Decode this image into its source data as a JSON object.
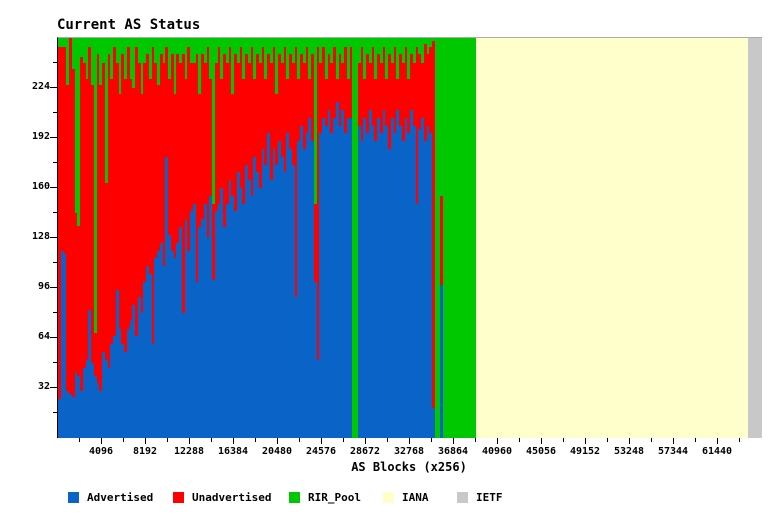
{
  "title": "Current AS Status",
  "chart_data": {
    "type": "bar",
    "subtype": "stacked",
    "title": "Current AS Status",
    "xlabel": "AS Blocks (x256)",
    "ylabel": "",
    "ylim": [
      0,
      256
    ],
    "xlim_as_numbers": [
      0,
      65536
    ],
    "x_block_size_asns": 256,
    "yticks_major": [
      32,
      64,
      96,
      128,
      160,
      192,
      224
    ],
    "ytick_minor_step": 16,
    "xticks_major_as": [
      4096,
      8192,
      12288,
      16384,
      20480,
      24576,
      28672,
      32768,
      36864,
      40960,
      45056,
      49152,
      53248,
      57344,
      61440
    ],
    "xtick_minor_step_as": 2048,
    "grid": "off",
    "legend_position": "bottom",
    "stack_total": 256,
    "stack_order_bottom_to_top": [
      "Advertised",
      "Unadvertised",
      "RIR_Pool"
    ],
    "rir_pool_rule": "RIR_Pool = 256 - Advertised - Unadvertised (per block)",
    "series": [
      {
        "name": "Advertised",
        "color": "#0A64C8",
        "values": [
          25,
          120,
          118,
          30,
          28,
          26,
          42,
          40,
          30,
          45,
          50,
          82,
          48,
          40,
          35,
          30,
          55,
          50,
          45,
          60,
          65,
          95,
          70,
          60,
          55,
          70,
          75,
          85,
          65,
          90,
          80,
          100,
          110,
          105,
          60,
          115,
          120,
          125,
          110,
          180,
          130,
          120,
          115,
          125,
          135,
          80,
          140,
          120,
          145,
          150,
          100,
          135,
          140,
          150,
          128,
          155,
          101,
          145,
          150,
          160,
          135,
          150,
          165,
          155,
          145,
          170,
          160,
          150,
          175,
          165,
          155,
          180,
          170,
          160,
          185,
          175,
          195,
          165,
          185,
          175,
          190,
          180,
          170,
          195,
          185,
          175,
          90,
          190,
          200,
          185,
          195,
          205,
          190,
          100,
          50,
          195,
          205,
          200,
          210,
          195,
          205,
          215,
          200,
          210,
          195,
          205,
          205,
          0,
          0,
          200,
          190,
          205,
          195,
          210,
          200,
          190,
          205,
          195,
          210,
          200,
          185,
          205,
          195,
          210,
          200,
          190,
          205,
          195,
          210,
          200,
          150,
          198,
          205,
          190,
          200,
          195,
          19,
          0,
          0,
          98,
          0,
          0,
          0,
          0,
          0,
          0,
          0,
          0,
          0,
          0,
          0,
          0
        ]
      },
      {
        "name": "Unadvertised",
        "color": "#FF0000",
        "values": [
          225,
          130,
          132,
          196,
          228,
          210,
          102,
          96,
          214,
          195,
          180,
          168,
          178,
          27,
          211,
          196,
          185,
          113,
          201,
          170,
          185,
          145,
          150,
          186,
          175,
          180,
          155,
          139,
          185,
          150,
          140,
          140,
          136,
          125,
          190,
          125,
          106,
          121,
          130,
          70,
          100,
          126,
          105,
          121,
          105,
          166,
          90,
          130,
          95,
          90,
          146,
          85,
          106,
          90,
          122,
          75,
          49,
          95,
          100,
          70,
          111,
          90,
          85,
          65,
          101,
          70,
          90,
          80,
          71,
          75,
          95,
          50,
          76,
          80,
          65,
          55,
          51,
          75,
          65,
          45,
          56,
          60,
          80,
          35,
          61,
          65,
          160,
          40,
          46,
          55,
          55,
          25,
          56,
          50,
          200,
          45,
          45,
          30,
          36,
          45,
          45,
          15,
          46,
          30,
          55,
          25,
          45,
          0,
          0,
          40,
          60,
          25,
          51,
          30,
          50,
          40,
          41,
          45,
          40,
          30,
          61,
          35,
          55,
          20,
          46,
          50,
          45,
          35,
          36,
          40,
          100,
          48,
          35,
          62,
          46,
          55,
          235,
          0,
          0,
          57,
          0,
          0,
          0,
          0,
          0,
          0,
          0,
          0,
          0,
          0,
          0,
          0
        ]
      },
      {
        "name": "RIR_Pool",
        "color": "#00C800",
        "values": "computed_as_remainder_to_256"
      }
    ],
    "regions": [
      {
        "name": "IANA",
        "color": "#FFFFCC",
        "from_block": 152,
        "to_block": 251
      },
      {
        "name": "IETF",
        "color": "#C8C8C8",
        "from_block": 251,
        "to_block": 256
      }
    ],
    "legend": [
      {
        "label": "Advertised",
        "color": "#0A64C8"
      },
      {
        "label": "Unadvertised",
        "color": "#FF0000"
      },
      {
        "label": "RIR_Pool",
        "color": "#00C800"
      },
      {
        "label": "IANA",
        "color": "#FFFFCC"
      },
      {
        "label": "IETF",
        "color": "#C8C8C8"
      }
    ],
    "frame": {
      "left_axis_color": "#000000",
      "top_border_color": "#AAAAAA"
    }
  }
}
